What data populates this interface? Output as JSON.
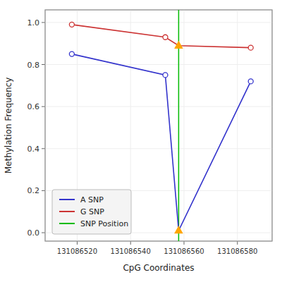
{
  "chart_data": {
    "type": "line",
    "xlabel": "CpG Coordinates",
    "ylabel": "Methylation Frequency",
    "x": [
      131086518,
      131086553,
      131086558,
      131086585
    ],
    "series": [
      {
        "name": "A SNP",
        "color": "#3333cc",
        "marker": "circle",
        "values": [
          0.85,
          0.75,
          0.01,
          0.72
        ]
      },
      {
        "name": "G SNP",
        "color": "#cc3333",
        "marker": "circle",
        "values": [
          0.99,
          0.93,
          0.89,
          0.88
        ]
      }
    ],
    "vline": {
      "x": 131086558,
      "name": "SNP Position",
      "color": "#00bb00",
      "marker": "triangle",
      "marker_color": "#ffa500"
    },
    "xlim": [
      131086508,
      131086593
    ],
    "ylim": [
      -0.04,
      1.06
    ],
    "xticks": [
      131086520,
      131086540,
      131086560,
      131086580
    ],
    "yticks": [
      {
        "value": 0.0,
        "label": "0.0"
      },
      0.2,
      0.4,
      0.6,
      0.8,
      {
        "value": 1.0,
        "label": "1.0"
      }
    ],
    "legend": "lower left"
  }
}
